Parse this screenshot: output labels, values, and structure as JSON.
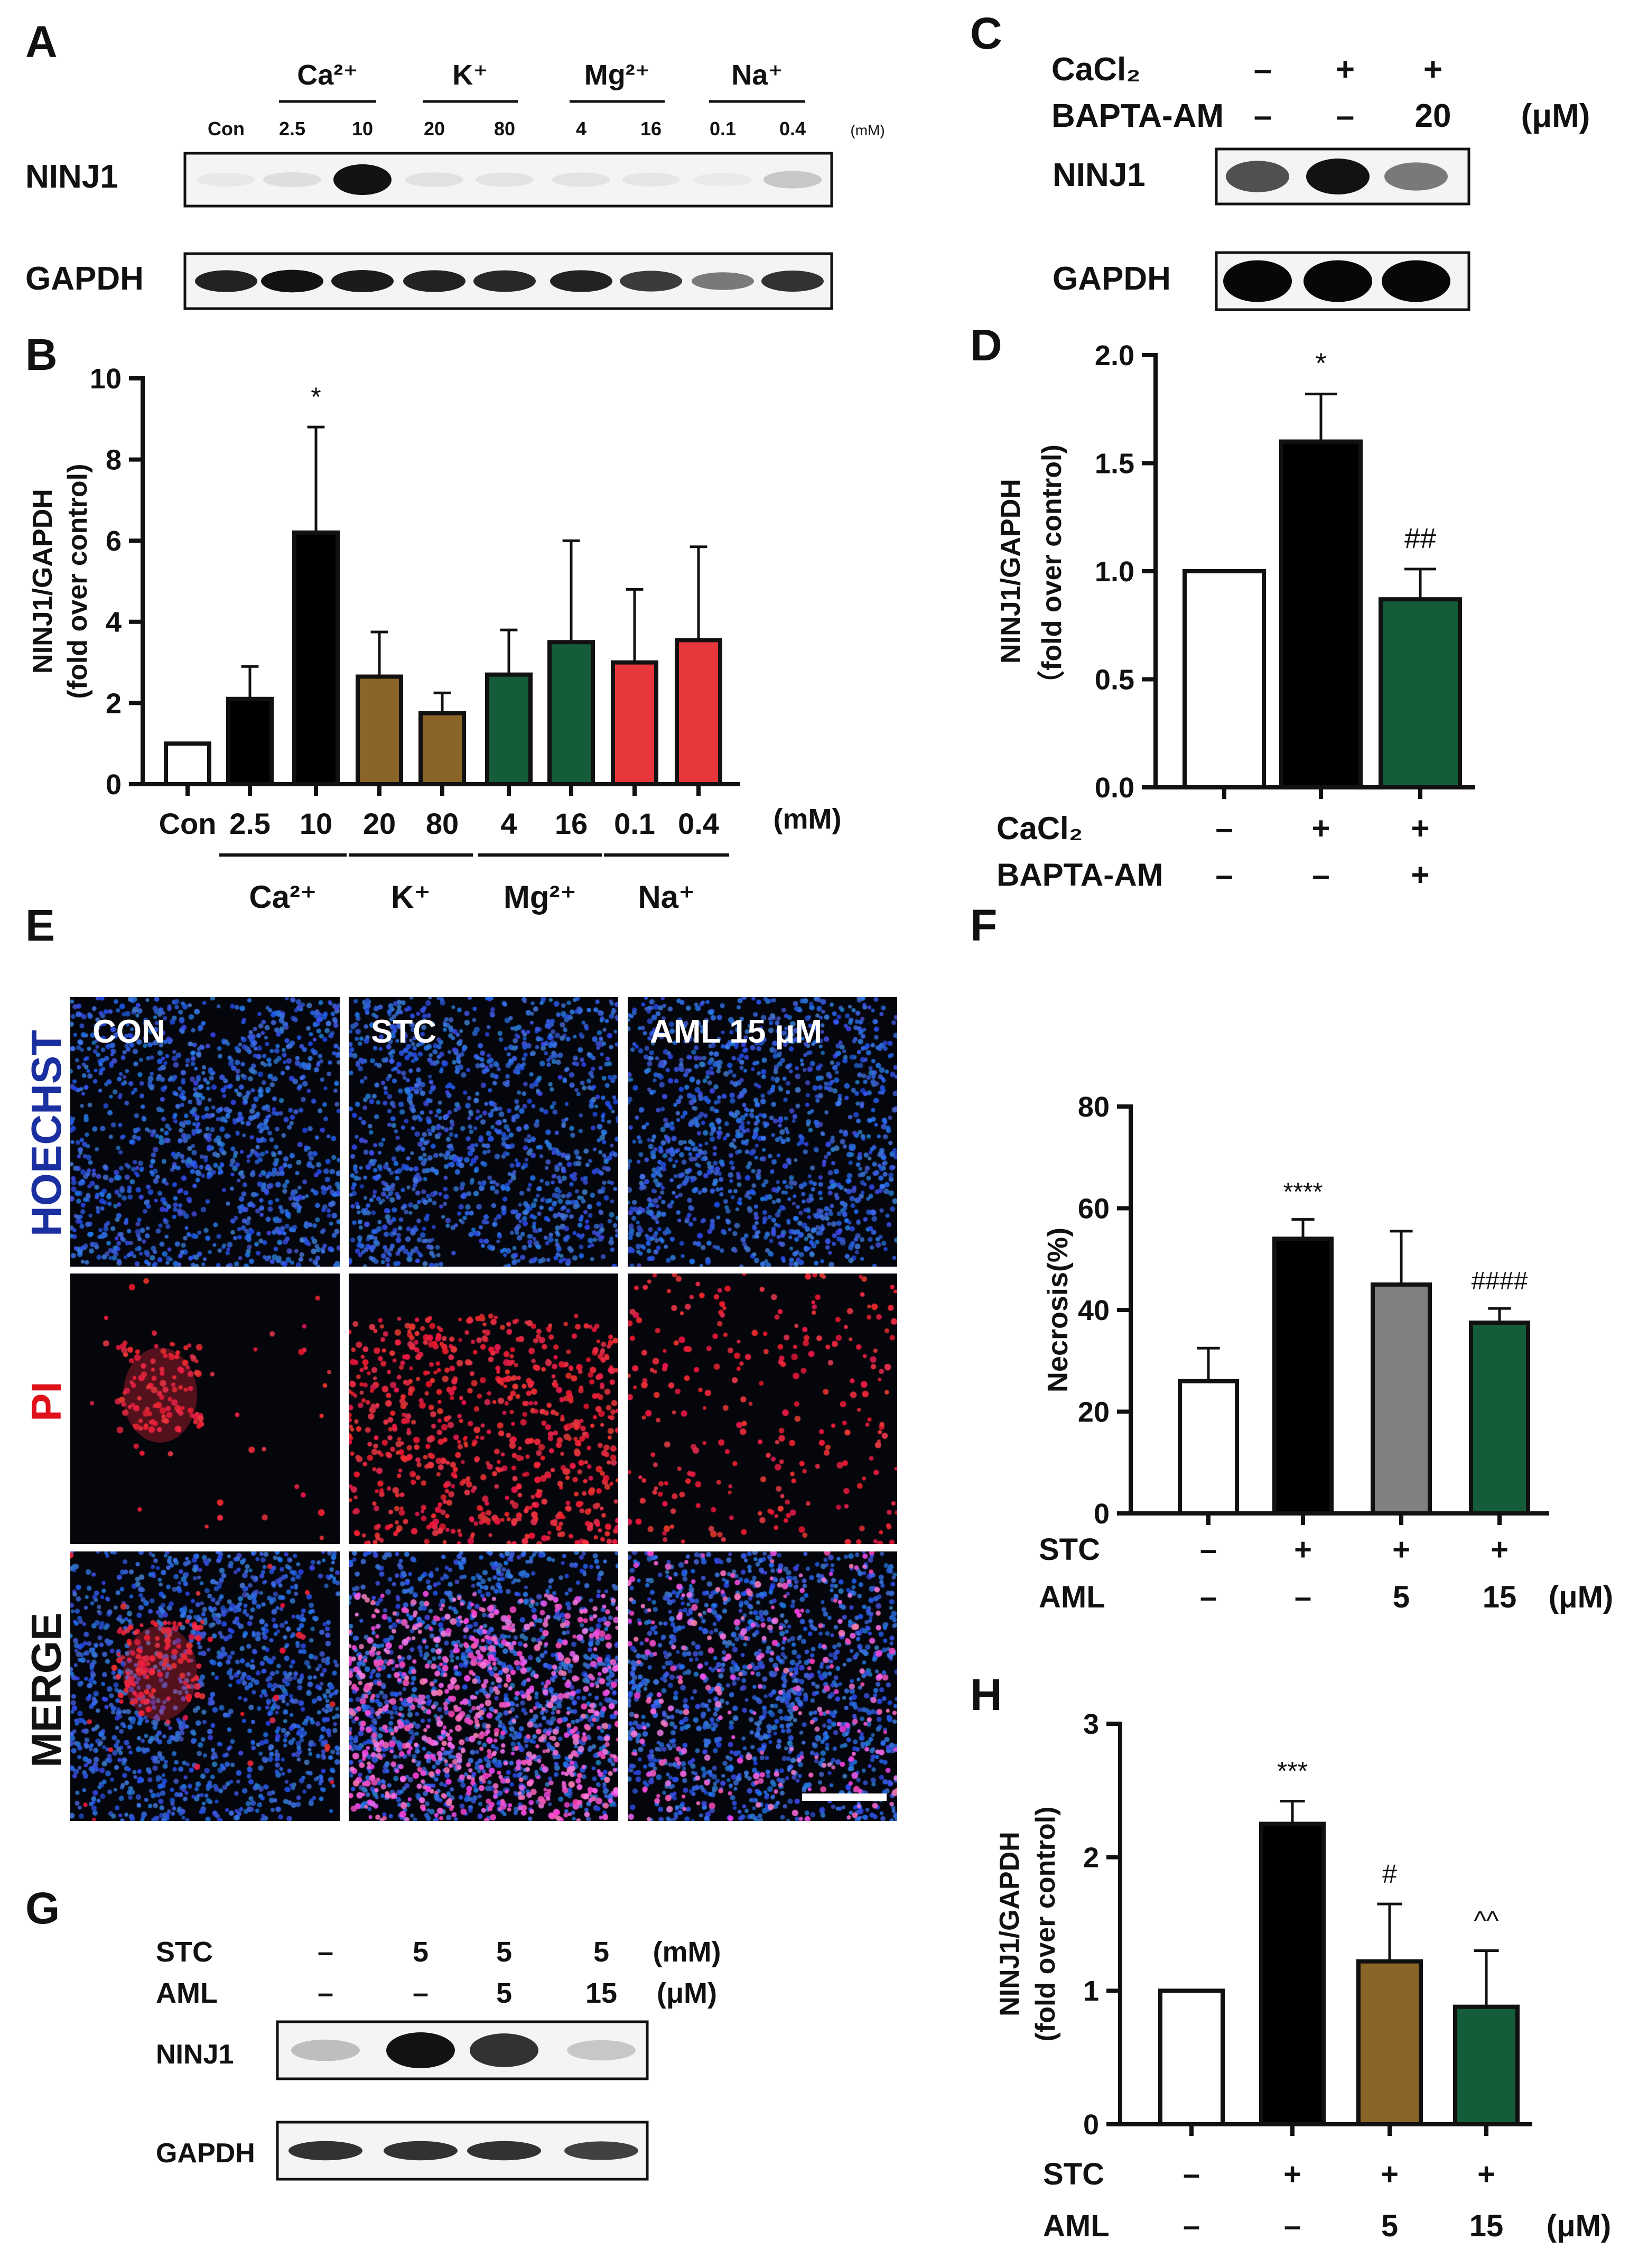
{
  "panels": {
    "A": {
      "letter": "A",
      "groups": [
        "Ca²⁺",
        "K⁺",
        "Mg²⁺",
        "Na⁺"
      ],
      "lanes": [
        "Con",
        "2.5",
        "10",
        "20",
        "80",
        "4",
        "16",
        "0.1",
        "0.4"
      ],
      "unit": "(mM)",
      "blots": [
        "NINJ1",
        "GAPDH"
      ],
      "ninj1_intensity": [
        0.05,
        0.12,
        0.95,
        0.1,
        0.08,
        0.08,
        0.06,
        0.04,
        0.25
      ],
      "gapdh_intensity": [
        0.9,
        0.95,
        0.92,
        0.9,
        0.88,
        0.9,
        0.82,
        0.6,
        0.85
      ]
    },
    "B": {
      "letter": "B"
    },
    "C": {
      "letter": "C",
      "rows": [
        {
          "label": "CaCl₂",
          "values": [
            "–",
            "+",
            "+"
          ],
          "unit": ""
        },
        {
          "label": "BAPTA-AM",
          "values": [
            "–",
            "–",
            "20"
          ],
          "unit": "(μM)"
        }
      ],
      "blots": [
        "NINJ1",
        "GAPDH"
      ],
      "ninj1_intensity": [
        0.75,
        0.95,
        0.6
      ],
      "gapdh_intensity": [
        0.98,
        0.98,
        0.98
      ]
    },
    "D": {
      "letter": "D"
    },
    "E": {
      "letter": "E",
      "columns": [
        "CON",
        "STC",
        "AML 15 μM"
      ],
      "rows": [
        "HOECHST",
        "PI",
        "MERGE"
      ],
      "row_colors": [
        "#1a2fa0",
        "#e0101a",
        "#111111"
      ]
    },
    "F": {
      "letter": "F"
    },
    "G": {
      "letter": "G",
      "rows": [
        {
          "label": "STC",
          "values": [
            "–",
            "5",
            "5",
            "5"
          ],
          "unit": "(mM)"
        },
        {
          "label": "AML",
          "values": [
            "–",
            "–",
            "5",
            "15"
          ],
          "unit": "(μM)"
        }
      ],
      "blots": [
        "NINJ1",
        "GAPDH"
      ],
      "ninj1_intensity": [
        0.3,
        0.95,
        0.85,
        0.25
      ],
      "gapdh_intensity": [
        0.85,
        0.85,
        0.85,
        0.8
      ]
    },
    "H": {
      "letter": "H"
    }
  },
  "chart_data": [
    {
      "panel": "B",
      "type": "bar",
      "ylabel": "NINJ1/GAPDH (fold over control)",
      "ylim": [
        0,
        10
      ],
      "yticks": [
        0,
        2,
        4,
        6,
        8,
        10
      ],
      "categories": [
        "Con",
        "2.5",
        "10",
        "20",
        "80",
        "4",
        "16",
        "0.1",
        "0.4"
      ],
      "values": [
        1.0,
        2.1,
        6.2,
        2.65,
        1.75,
        2.7,
        3.5,
        3.0,
        3.55
      ],
      "errors": [
        0.0,
        0.8,
        2.6,
        1.1,
        0.5,
        1.1,
        2.5,
        1.8,
        2.3
      ],
      "annotations": [
        "",
        "",
        "*",
        "",
        "",
        "",
        "",
        "",
        ""
      ],
      "colors": [
        "#ffffff",
        "#000000",
        "#000000",
        "#8b6428",
        "#8b6428",
        "#155c38",
        "#155c38",
        "#e8373c",
        "#e8373c"
      ],
      "groups": [
        {
          "label": "Ca²⁺",
          "from": 1,
          "to": 2
        },
        {
          "label": "K⁺",
          "from": 3,
          "to": 4
        },
        {
          "label": "Mg²⁺",
          "from": 5,
          "to": 6
        },
        {
          "label": "Na⁺",
          "from": 7,
          "to": 8
        }
      ],
      "unit": "(mM)"
    },
    {
      "panel": "D",
      "type": "bar",
      "ylabel": "NINJ1/GAPDH (fold over control)",
      "ylim": [
        0,
        2.0
      ],
      "yticks": [
        "0.0",
        "0.5",
        "1.0",
        "1.5",
        "2.0"
      ],
      "values": [
        1.0,
        1.6,
        0.87
      ],
      "errors": [
        0.0,
        0.22,
        0.14
      ],
      "annotations": [
        "",
        "*",
        "##"
      ],
      "colors": [
        "#ffffff",
        "#000000",
        "#155c38"
      ],
      "conditions": [
        {
          "label": "CaCl₂",
          "values": [
            "–",
            "+",
            "+"
          ]
        },
        {
          "label": "BAPTA-AM",
          "values": [
            "–",
            "–",
            "+"
          ]
        }
      ],
      "unit": ""
    },
    {
      "panel": "F",
      "type": "bar",
      "ylabel": "Necrosis(%)",
      "ylim": [
        0,
        80
      ],
      "yticks": [
        0,
        20,
        40,
        60,
        80
      ],
      "values": [
        26,
        54,
        45,
        37.5
      ],
      "errors": [
        6.5,
        3.8,
        10.5,
        2.8
      ],
      "annotations": [
        "",
        "****",
        "",
        "####"
      ],
      "colors": [
        "#ffffff",
        "#000000",
        "#808080",
        "#155c38"
      ],
      "conditions": [
        {
          "label": "STC",
          "values": [
            "–",
            "+",
            "+",
            "+"
          ]
        },
        {
          "label": "AML",
          "values": [
            "–",
            "–",
            "5",
            "15"
          ]
        }
      ],
      "unit": "(μM)"
    },
    {
      "panel": "H",
      "type": "bar",
      "ylabel": "NINJ1/GAPDH (fold over control)",
      "ylim": [
        0,
        3
      ],
      "yticks": [
        0,
        1,
        2,
        3
      ],
      "values": [
        1.0,
        2.25,
        1.22,
        0.88
      ],
      "errors": [
        0.0,
        0.17,
        0.43,
        0.42
      ],
      "annotations": [
        "",
        "***",
        "#",
        "^^"
      ],
      "colors": [
        "#ffffff",
        "#000000",
        "#8b6428",
        "#155c38"
      ],
      "conditions": [
        {
          "label": "STC",
          "values": [
            "–",
            "+",
            "+",
            "+"
          ]
        },
        {
          "label": "AML",
          "values": [
            "–",
            "–",
            "5",
            "15"
          ]
        }
      ],
      "unit": "(μM)"
    }
  ]
}
